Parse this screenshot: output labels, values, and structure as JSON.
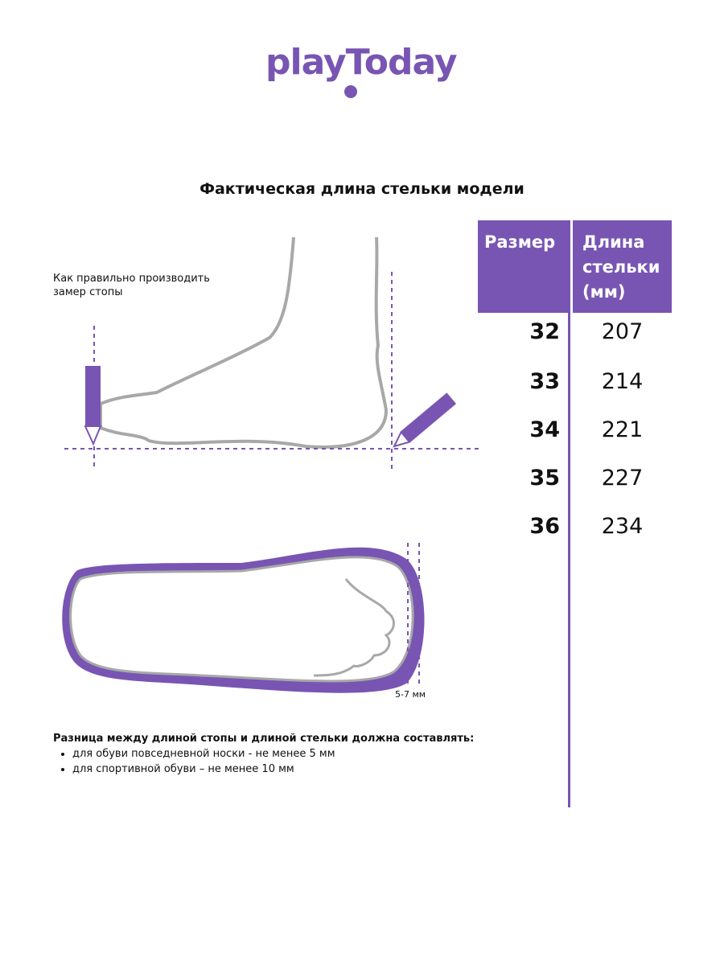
{
  "logo": {
    "text": "playToday"
  },
  "title": "Фактическая длина стельки модели",
  "table": {
    "headers": [
      "Размер",
      "Длина стельки (мм)"
    ],
    "rows": [
      {
        "size": "32",
        "length": "207"
      },
      {
        "size": "33",
        "length": "214"
      },
      {
        "size": "34",
        "length": "221"
      },
      {
        "size": "35",
        "length": "227"
      },
      {
        "size": "36",
        "length": "234"
      }
    ]
  },
  "howto": "Как правильно производить замер стопы",
  "gap_label": "5-7 мм",
  "note": {
    "title": "Разница между длиной стопы и длиной стельки должна составлять:",
    "items": [
      "для обуви повседневной носки -  не менее 5 мм",
      "для спортивной обуви – не менее 10 мм"
    ]
  },
  "colors": {
    "accent": "#7855b3",
    "outline": "#a8a8a8"
  }
}
